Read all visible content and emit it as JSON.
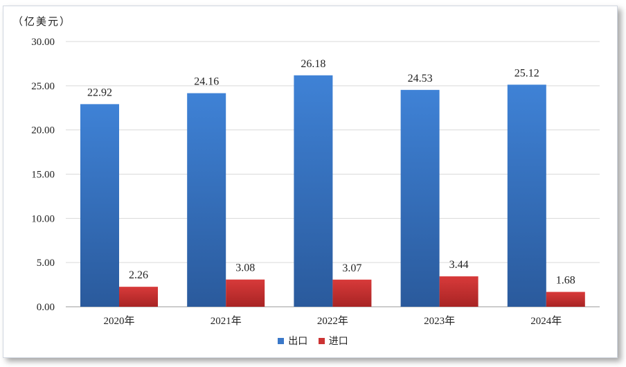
{
  "chart_data": {
    "type": "bar",
    "unit_label": "（亿美元）",
    "categories": [
      "2020年",
      "2021年",
      "2022年",
      "2023年",
      "2024年"
    ],
    "series": [
      {
        "name": "出口",
        "values": [
          22.92,
          24.16,
          26.18,
          24.53,
          25.12
        ],
        "color": "#3a78c9",
        "labels": [
          "22.92",
          "24.16",
          "26.18",
          "24.53",
          "25.12"
        ]
      },
      {
        "name": "进口",
        "values": [
          2.26,
          3.08,
          3.07,
          3.44,
          1.68
        ],
        "color": "#cc3333",
        "labels": [
          "2.26",
          "3.08",
          "3.07",
          "3.44",
          "1.68"
        ]
      }
    ],
    "ylim": [
      0,
      30
    ],
    "yticks": [
      "0.00",
      "5.00",
      "10.00",
      "15.00",
      "20.00",
      "25.00",
      "30.00"
    ],
    "grid": true,
    "legend_position": "bottom"
  }
}
